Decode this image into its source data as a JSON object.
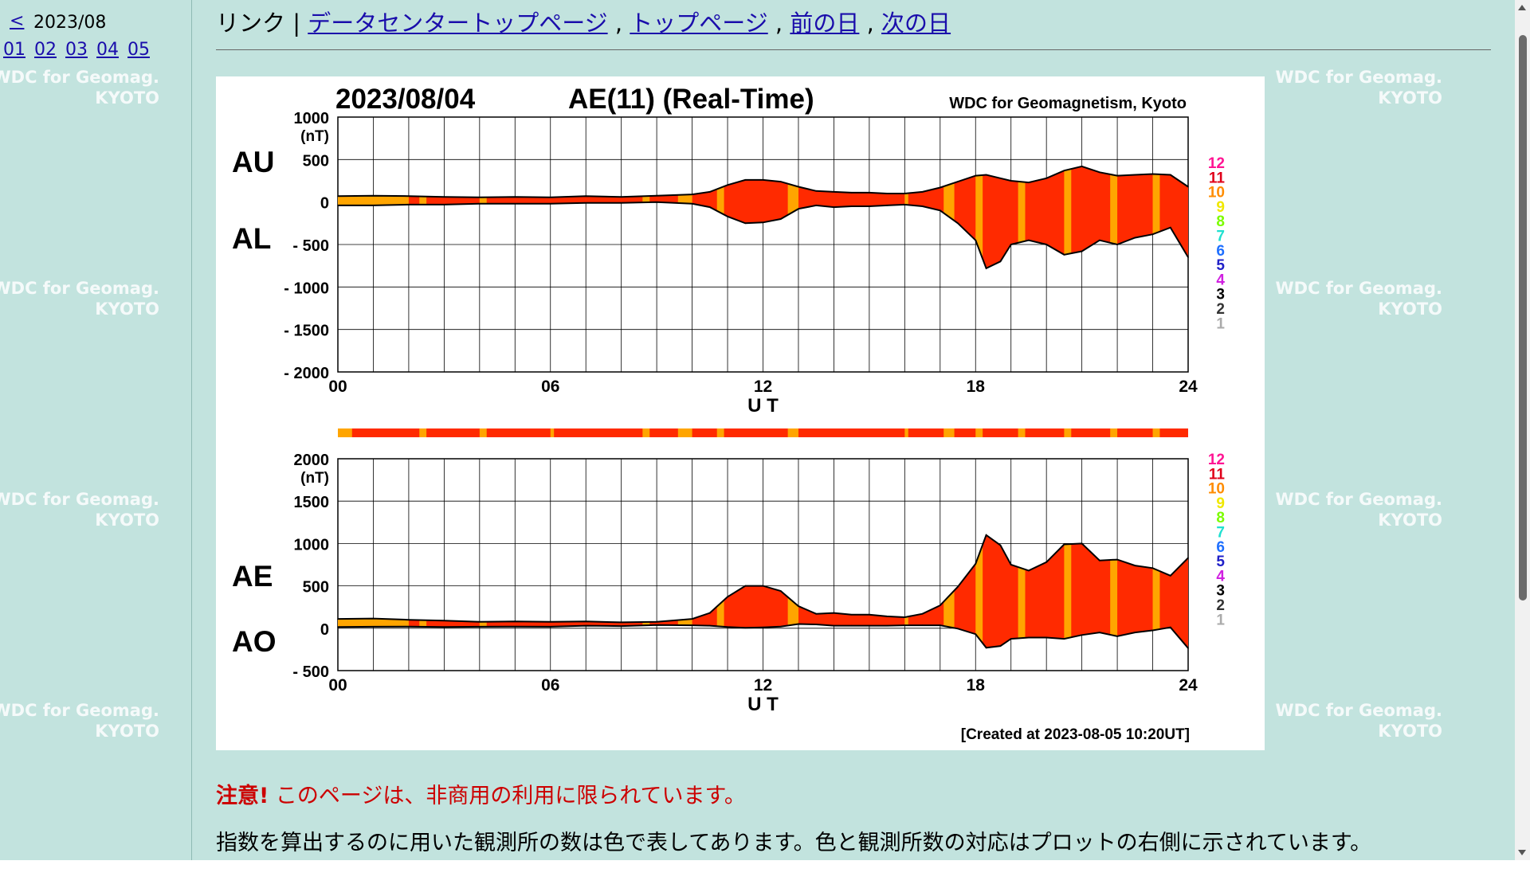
{
  "sidebar": {
    "prev_label": "<",
    "month": "2023/08",
    "days": [
      "01",
      "02",
      "03",
      "04",
      "05"
    ]
  },
  "header": {
    "links_prefix": "リンク | ",
    "links": [
      "データセンタートップページ",
      "トップページ",
      "前の日",
      "次の日"
    ],
    "separator": " , "
  },
  "watermark": {
    "line1": "WDC for Geomag.",
    "line2": "KYOTO"
  },
  "figure": {
    "date": "2023/08/04",
    "title": "AE(11) (Real-Time)",
    "credit": "WDC for Geomagnetism, Kyoto",
    "created": "[Created at 2023-08-05 10:20UT]",
    "colors": {
      "main_fill": "#ff2a00",
      "minor_fill": "#ffa500",
      "line": "#000000",
      "grid": "#000000"
    },
    "legend": [
      {
        "label": "12",
        "color": "#ff1493"
      },
      {
        "label": "11",
        "color": "#e0001a"
      },
      {
        "label": "10",
        "color": "#ff8c00"
      },
      {
        "label": "9",
        "color": "#f0e800"
      },
      {
        "label": "8",
        "color": "#7cfc00"
      },
      {
        "label": "7",
        "color": "#20e0d0"
      },
      {
        "label": "6",
        "color": "#1e6fff"
      },
      {
        "label": "5",
        "color": "#2020c8"
      },
      {
        "label": "4",
        "color": "#d020e0"
      },
      {
        "label": "3",
        "color": "#000000"
      },
      {
        "label": "2",
        "color": "#333333"
      },
      {
        "label": "1",
        "color": "#aaaaaa"
      }
    ]
  },
  "chart_data": [
    {
      "type": "area",
      "panel_labels": [
        "AU",
        "AL"
      ],
      "xlabel": "U T",
      "ylabel": "(nT)",
      "xticks": [
        "00",
        "06",
        "12",
        "18",
        "24"
      ],
      "xlim": [
        0,
        24
      ],
      "ylim": [
        -2000,
        1000
      ],
      "yticks": [
        "1000",
        "500",
        "0",
        "-500",
        "-1000",
        "-1500",
        "-2000"
      ],
      "x": [
        0,
        1,
        2,
        3,
        4,
        5,
        6,
        7,
        8,
        9,
        10,
        10.5,
        11,
        11.5,
        12,
        12.5,
        13,
        13.5,
        14,
        14.5,
        15,
        15.5,
        16,
        16.5,
        17,
        17.5,
        18,
        18.3,
        18.7,
        19,
        19.5,
        20,
        20.5,
        21,
        21.5,
        22,
        22.5,
        23,
        23.5,
        24
      ],
      "series": [
        {
          "name": "AU",
          "values": [
            70,
            75,
            70,
            60,
            55,
            60,
            55,
            70,
            60,
            75,
            90,
            120,
            200,
            260,
            260,
            240,
            180,
            130,
            120,
            110,
            110,
            100,
            100,
            120,
            170,
            240,
            310,
            320,
            280,
            250,
            230,
            280,
            370,
            420,
            350,
            310,
            320,
            330,
            320,
            180
          ]
        },
        {
          "name": "AL",
          "values": [
            -40,
            -40,
            -30,
            -30,
            -20,
            -20,
            -20,
            -10,
            -10,
            0,
            -20,
            -60,
            -170,
            -250,
            -240,
            -200,
            -80,
            -40,
            -60,
            -50,
            -50,
            -40,
            -30,
            -50,
            -100,
            -250,
            -450,
            -780,
            -700,
            -500,
            -450,
            -500,
            -620,
            -580,
            -450,
            -500,
            -420,
            -380,
            -300,
            -650
          ]
        }
      ]
    },
    {
      "type": "area",
      "panel_labels": [
        "AE",
        "AO"
      ],
      "xlabel": "U T",
      "ylabel": "(nT)",
      "xticks": [
        "00",
        "06",
        "12",
        "18",
        "24"
      ],
      "xlim": [
        0,
        24
      ],
      "ylim": [
        -500,
        2000
      ],
      "yticks": [
        "2000",
        "1500",
        "1000",
        "500",
        "0",
        "-500"
      ],
      "x": [
        0,
        1,
        2,
        3,
        4,
        5,
        6,
        7,
        8,
        9,
        10,
        10.5,
        11,
        11.5,
        12,
        12.5,
        13,
        13.5,
        14,
        14.5,
        15,
        15.5,
        16,
        16.5,
        17,
        17.5,
        18,
        18.3,
        18.7,
        19,
        19.5,
        20,
        20.5,
        21,
        21.5,
        22,
        22.5,
        23,
        23.5,
        24
      ],
      "series": [
        {
          "name": "AE",
          "values": [
            110,
            115,
            100,
            90,
            75,
            80,
            75,
            80,
            70,
            75,
            110,
            180,
            370,
            500,
            500,
            440,
            260,
            170,
            180,
            160,
            160,
            140,
            130,
            170,
            270,
            490,
            760,
            1100,
            980,
            750,
            680,
            780,
            990,
            1000,
            800,
            810,
            740,
            710,
            620,
            830
          ]
        },
        {
          "name": "AO",
          "values": [
            15,
            18,
            20,
            15,
            18,
            20,
            18,
            30,
            25,
            38,
            35,
            30,
            15,
            5,
            10,
            20,
            50,
            45,
            30,
            30,
            30,
            30,
            35,
            35,
            35,
            -5,
            -70,
            -230,
            -210,
            -125,
            -110,
            -110,
            -125,
            -80,
            -50,
            -95,
            -50,
            -25,
            10,
            -235
          ]
        }
      ]
    }
  ],
  "notice": {
    "label": "注意!",
    "text": " このページは、非商用の利用に限られています。"
  },
  "explanation": "指数を算出するのに用いた観測所の数は色で表してあります。色と観測所数の対応はプロットの右側に示されています。"
}
